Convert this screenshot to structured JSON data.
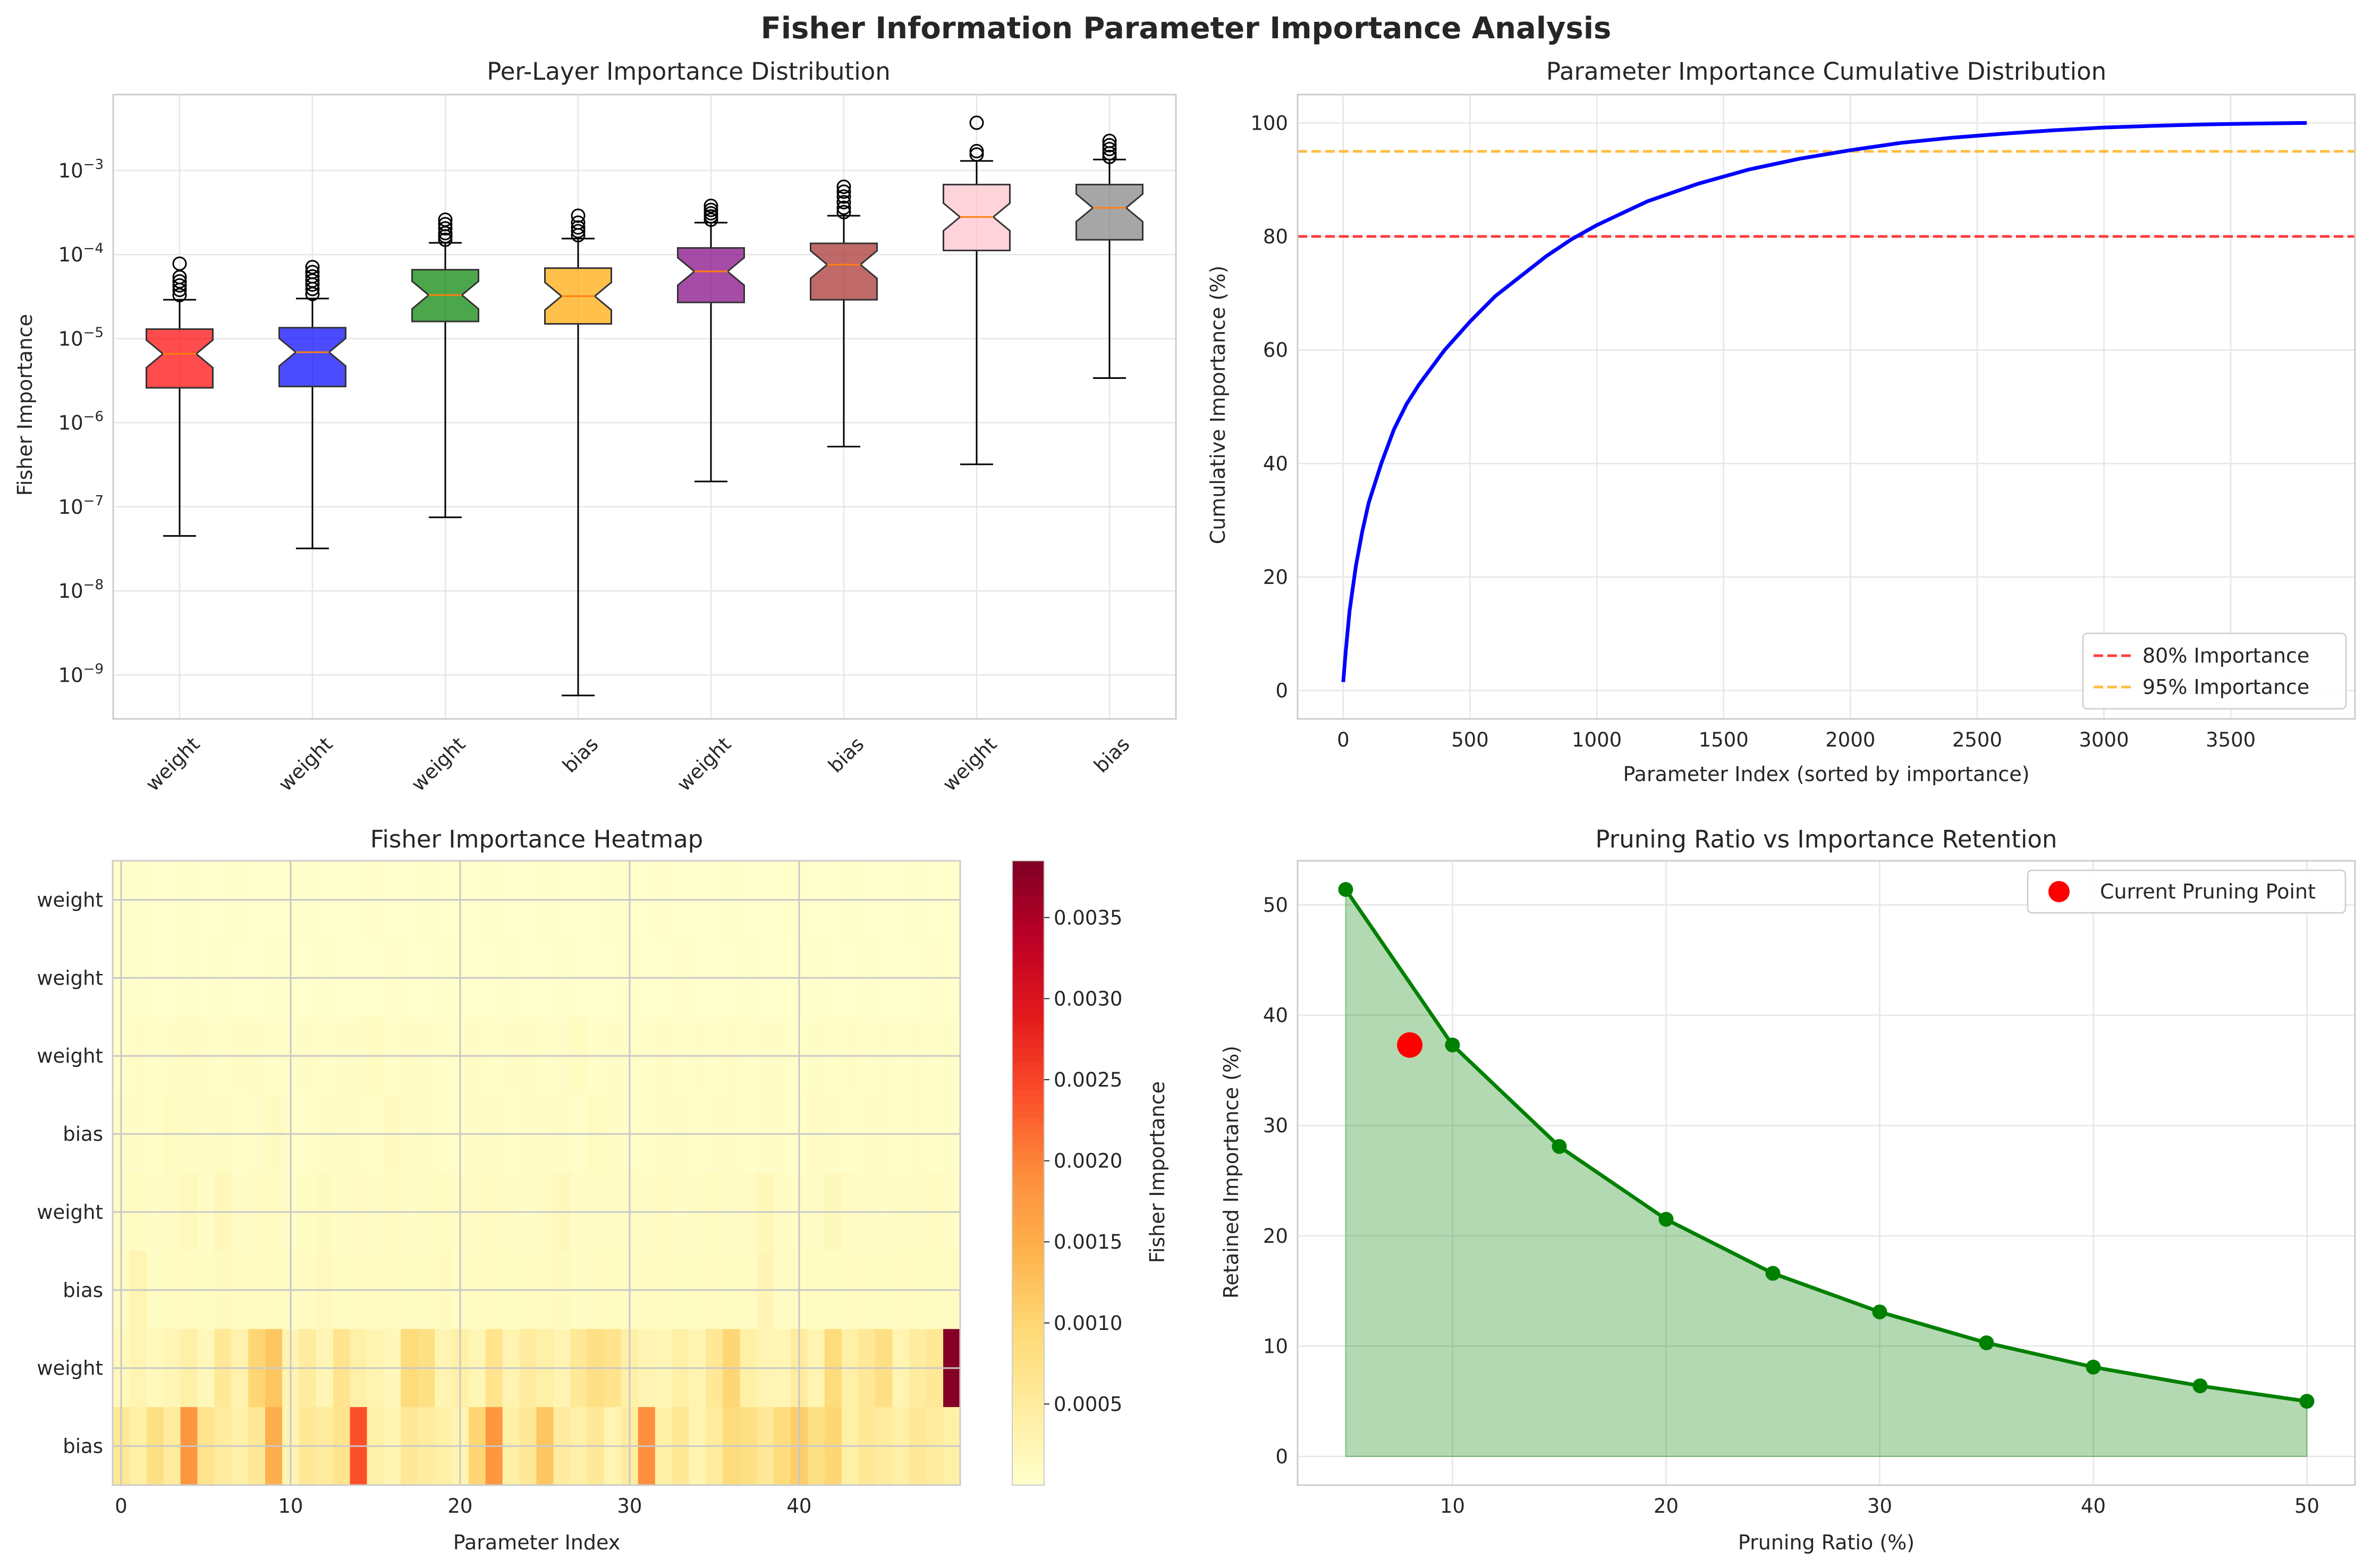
{
  "figure": {
    "suptitle": "Fisher Information Parameter Importance Analysis"
  },
  "chart_data": [
    {
      "type": "box",
      "title": "Per-Layer Importance Distribution",
      "xlabel": "",
      "ylabel": "Fisher Importance",
      "yscale": "log",
      "ylim": [
        3e-10,
        0.008
      ],
      "categories": [
        "weight",
        "weight",
        "weight",
        "bias",
        "weight",
        "bias",
        "weight",
        "bias"
      ],
      "colors": [
        "#ff0000",
        "#0000ff",
        "#008000",
        "#ffa500",
        "#800080",
        "#a52a2a",
        "#ffc0cb",
        "#808080"
      ],
      "boxes": [
        {
          "whislo": 4.5e-08,
          "q1": 2.6e-06,
          "med": 6.6e-06,
          "q3": 1.3e-05,
          "whishi": 2.9e-05,
          "fliers": [
            3.3e-05,
            3.8e-05,
            4.3e-05,
            4.8e-05,
            5.4e-05,
            7.8e-05
          ]
        },
        {
          "whislo": 3.2e-08,
          "q1": 2.7e-06,
          "med": 6.9e-06,
          "q3": 1.35e-05,
          "whishi": 3e-05,
          "fliers": [
            3.4e-05,
            3.9e-05,
            4.4e-05,
            4.9e-05,
            5.5e-05,
            6.2e-05,
            7.1e-05
          ]
        },
        {
          "whislo": 7.5e-08,
          "q1": 1.6e-05,
          "med": 3.3e-05,
          "q3": 6.6e-05,
          "whishi": 0.000138,
          "fliers": [
            0.00015,
            0.000165,
            0.00018,
            0.000205,
            0.00023,
            0.00026
          ]
        },
        {
          "whislo": 5.7e-10,
          "q1": 1.5e-05,
          "med": 3.2e-05,
          "q3": 6.9e-05,
          "whishi": 0.000155,
          "fliers": [
            0.00017,
            0.00019,
            0.00021,
            0.00024,
            0.00029
          ]
        },
        {
          "whislo": 2e-07,
          "q1": 2.7e-05,
          "med": 6.3e-05,
          "q3": 0.00012,
          "whishi": 0.00024,
          "fliers": [
            0.00026,
            0.000285,
            0.00031,
            0.00034,
            0.00038
          ]
        },
        {
          "whislo": 5.2e-07,
          "q1": 2.9e-05,
          "med": 7.6e-05,
          "q3": 0.000136,
          "whishi": 0.00029,
          "fliers": [
            0.00032,
            0.00036,
            0.00042,
            0.00049,
            0.00056,
            0.00064
          ]
        },
        {
          "whislo": 3.2e-07,
          "q1": 0.000112,
          "med": 0.00028,
          "q3": 0.00068,
          "whishi": 0.0013,
          "fliers": [
            0.00155,
            0.0017,
            0.0037
          ]
        },
        {
          "whislo": 3.4e-06,
          "q1": 0.00015,
          "med": 0.00036,
          "q3": 0.00068,
          "whishi": 0.00135,
          "fliers": [
            0.00145,
            0.0016,
            0.0018,
            0.002,
            0.00225
          ]
        }
      ],
      "yticks": [
        {
          "base": "10",
          "exp": "−3",
          "value": 0.001
        },
        {
          "base": "10",
          "exp": "−4",
          "value": 0.0001
        },
        {
          "base": "10",
          "exp": "−5",
          "value": 1e-05
        },
        {
          "base": "10",
          "exp": "−6",
          "value": 1e-06
        },
        {
          "base": "10",
          "exp": "−7",
          "value": 1e-07
        },
        {
          "base": "10",
          "exp": "−8",
          "value": 1e-08
        },
        {
          "base": "10",
          "exp": "−9",
          "value": 1e-09
        }
      ],
      "grid": true
    },
    {
      "type": "line",
      "title": "Parameter Importance Cumulative Distribution",
      "xlabel": "Parameter Index (sorted by importance)",
      "ylabel": "Cumulative Importance (%)",
      "xlim": [
        -180,
        3990
      ],
      "ylim": [
        -5,
        105
      ],
      "xticks": [
        0,
        500,
        1000,
        1500,
        2000,
        2500,
        3000,
        3500
      ],
      "yticks": [
        0,
        20,
        40,
        60,
        80,
        100
      ],
      "series": [
        {
          "color": "#0000ff",
          "x": [
            0,
            10,
            25,
            50,
            75,
            100,
            150,
            200,
            250,
            300,
            400,
            500,
            600,
            700,
            800,
            900,
            1000,
            1200,
            1400,
            1600,
            1800,
            2000,
            2200,
            2400,
            2600,
            2800,
            3000,
            3200,
            3400,
            3600,
            3800
          ],
          "y": [
            1.5,
            7,
            14,
            22,
            28,
            33,
            40,
            46,
            50.5,
            54,
            60,
            65,
            69.5,
            73,
            76.5,
            79.5,
            82,
            86.2,
            89.3,
            91.8,
            93.7,
            95.2,
            96.5,
            97.4,
            98.1,
            98.7,
            99.2,
            99.5,
            99.75,
            99.9,
            100
          ]
        }
      ],
      "hlines": [
        {
          "y": 80,
          "color": "#ff0000",
          "label": "80% Importance"
        },
        {
          "y": 95,
          "color": "#ffa500",
          "label": "95% Importance"
        }
      ],
      "legend": "bottom-right",
      "grid": true
    },
    {
      "type": "heatmap",
      "title": "Fisher Importance Heatmap",
      "xlabel": "Parameter Index",
      "ylabel": "",
      "rows": [
        "weight",
        "weight",
        "weight",
        "bias",
        "weight",
        "bias",
        "weight",
        "bias"
      ],
      "columns": 50,
      "xticks": [
        0,
        10,
        20,
        30,
        40
      ],
      "colormap": "YlOrRd",
      "vmin": 0,
      "vmax": 0.00385,
      "colorbar_label": "Fisher Importance",
      "colorbar_ticks": [
        "0.0005",
        "0.0010",
        "0.0015",
        "0.0020",
        "0.0025",
        "0.0030",
        "0.0035"
      ],
      "colorbar_tick_values": [
        0.0005,
        0.001,
        0.0015,
        0.002,
        0.0025,
        0.003,
        0.0035
      ],
      "values": [
        [
          1e-05,
          2e-05,
          1e-05,
          1e-05,
          2e-05,
          1e-05,
          1e-05,
          2e-05,
          1e-05,
          1e-05,
          1e-05,
          2e-05,
          1e-05,
          1e-05,
          1e-05,
          2e-05,
          1e-05,
          1e-05,
          2e-05,
          1e-05,
          1e-05,
          1e-05,
          2e-05,
          1e-05,
          1e-05,
          2e-05,
          1e-05,
          1e-05,
          1e-05,
          2e-05,
          1e-05,
          1e-05,
          2e-05,
          1e-05,
          1e-05,
          1e-05,
          2e-05,
          1e-05,
          1e-05,
          1e-05,
          2e-05,
          1e-05,
          1e-05,
          2e-05,
          1e-05,
          1e-05,
          1e-05,
          2e-05,
          1e-05,
          1e-05
        ],
        [
          1e-05,
          2e-05,
          1e-05,
          1e-05,
          2e-05,
          1e-05,
          2e-05,
          1e-05,
          1e-05,
          2e-05,
          1e-05,
          1e-05,
          2e-05,
          1e-05,
          1e-05,
          1e-05,
          2e-05,
          1e-05,
          1e-05,
          2e-05,
          1e-05,
          1e-05,
          1e-05,
          2e-05,
          1e-05,
          1e-05,
          2e-05,
          1e-05,
          1e-05,
          1e-05,
          2e-05,
          1e-05,
          1e-05,
          2e-05,
          1e-05,
          1e-05,
          1e-05,
          2e-05,
          1e-05,
          1e-05,
          1e-05,
          2e-05,
          1e-05,
          1e-05,
          2e-05,
          1e-05,
          1e-05,
          1e-05,
          2e-05,
          1e-05
        ],
        [
          4e-05,
          8e-05,
          3e-05,
          6e-05,
          0.0001,
          5e-05,
          4e-05,
          9e-05,
          6e-05,
          4e-05,
          5e-05,
          8e-05,
          4e-05,
          6e-05,
          5e-05,
          0.00012,
          4e-05,
          7e-05,
          5e-05,
          4e-05,
          6e-05,
          8e-05,
          4e-05,
          5e-05,
          9e-05,
          4e-05,
          6e-05,
          0.00012,
          4e-05,
          5e-05,
          6e-05,
          4e-05,
          7e-05,
          4e-05,
          5e-05,
          4e-05,
          8e-05,
          4e-05,
          6e-05,
          5e-05,
          4e-05,
          6e-05,
          4e-05,
          8e-05,
          4e-05,
          5e-05,
          4e-05,
          6e-05,
          4e-05,
          5e-05
        ],
        [
          5e-05,
          6e-05,
          4e-05,
          0.00012,
          8e-05,
          5e-05,
          0.0001,
          4e-05,
          6e-05,
          0.00014,
          5e-05,
          4e-05,
          7e-05,
          5e-05,
          6e-05,
          4e-05,
          0.00013,
          5e-05,
          8e-05,
          4e-05,
          6e-05,
          5e-05,
          0.0001,
          4e-05,
          6e-05,
          5e-05,
          7e-05,
          4e-05,
          0.00012,
          5e-05,
          6e-05,
          4e-05,
          5e-05,
          8e-05,
          4e-05,
          6e-05,
          5e-05,
          4e-05,
          6e-05,
          5e-05,
          4e-05,
          0.0001,
          5e-05,
          4e-05,
          6e-05,
          5e-05,
          4e-05,
          5e-05,
          4e-05,
          5e-05
        ],
        [
          8e-05,
          0.00012,
          6e-05,
          0.0001,
          0.00015,
          7e-05,
          0.0002,
          8e-05,
          0.0001,
          0.00012,
          6e-05,
          9e-05,
          0.00014,
          7e-05,
          0.0001,
          8e-05,
          0.00012,
          6e-05,
          9e-05,
          0.00011,
          7e-05,
          0.0001,
          0.00012,
          8e-05,
          6e-05,
          0.0001,
          0.00018,
          8e-05,
          9e-05,
          7e-05,
          0.00011,
          8e-05,
          0.0001,
          6e-05,
          9e-05,
          0.00012,
          8e-05,
          0.0001,
          0.0002,
          7e-05,
          9e-05,
          8e-05,
          0.00018,
          0.0001,
          8e-05,
          6e-05,
          9e-05,
          8e-05,
          0.0001,
          8e-05
        ],
        [
          0.0001,
          0.0003,
          8e-05,
          0.00012,
          0.0001,
          9e-05,
          0.00014,
          0.0001,
          0.00011,
          0.00012,
          9e-05,
          0.0001,
          0.00015,
          9e-05,
          0.00011,
          0.0001,
          0.00012,
          9e-05,
          0.0001,
          0.00013,
          9e-05,
          0.0001,
          0.00012,
          9e-05,
          0.00011,
          0.0001,
          0.00013,
          9e-05,
          0.0001,
          0.00012,
          9e-05,
          0.0001,
          0.00011,
          9e-05,
          0.0001,
          0.00012,
          9e-05,
          0.00011,
          0.00025,
          9e-05,
          0.0001,
          0.00012,
          9e-05,
          0.0001,
          0.00011,
          9e-05,
          0.0001,
          0.00012,
          9e-05,
          0.0001
        ],
        [
          0.0002,
          0.0003,
          0.00015,
          0.00025,
          0.0004,
          0.0002,
          0.0006,
          0.00035,
          0.001,
          0.0012,
          0.0003,
          0.0005,
          0.00025,
          0.0007,
          0.0004,
          0.0003,
          0.0002,
          0.0009,
          0.0008,
          0.0003,
          0.0004,
          0.00025,
          0.0007,
          0.0003,
          0.0005,
          0.0004,
          0.0003,
          0.0006,
          0.0008,
          0.0007,
          0.0004,
          0.0003,
          0.00025,
          0.0004,
          0.0003,
          0.0006,
          0.001,
          0.0004,
          0.0003,
          0.00025,
          0.0005,
          0.0003,
          0.0009,
          0.0004,
          0.0006,
          0.0008,
          0.0003,
          0.0005,
          0.0006,
          0.0038
        ],
        [
          0.0006,
          0.0004,
          0.0008,
          0.0005,
          0.0018,
          0.0007,
          0.0005,
          0.0004,
          0.0006,
          0.0015,
          0.0003,
          0.0006,
          0.0005,
          0.0007,
          0.0024,
          0.0004,
          0.0003,
          0.0006,
          0.0005,
          0.0004,
          0.0003,
          0.001,
          0.0018,
          0.0004,
          0.0006,
          0.0012,
          0.0005,
          0.0004,
          0.0006,
          0.0003,
          0.0005,
          0.0019,
          0.0004,
          0.0006,
          0.0003,
          0.0005,
          0.0009,
          0.0008,
          0.0006,
          0.0009,
          0.0011,
          0.0008,
          0.001,
          0.0004,
          0.0006,
          0.0005,
          0.0004,
          0.0006,
          0.0005,
          0.0004
        ]
      ]
    },
    {
      "type": "line",
      "title": "Pruning Ratio vs Importance Retention",
      "xlabel": "Pruning Ratio (%)",
      "ylabel": "Retained Importance (%)",
      "xlim": [
        2.75,
        52.25
      ],
      "ylim": [
        -2.6,
        54
      ],
      "xticks": [
        10,
        20,
        30,
        40,
        50
      ],
      "yticks": [
        0,
        10,
        20,
        30,
        40,
        50
      ],
      "series": [
        {
          "color": "#008000",
          "x": [
            5,
            10,
            15,
            20,
            25,
            30,
            35,
            40,
            45,
            50
          ],
          "y": [
            51.4,
            37.3,
            28.1,
            21.5,
            16.6,
            13.1,
            10.3,
            8.1,
            6.4,
            5.0
          ],
          "fill": true
        }
      ],
      "highlight": {
        "label": "Current Pruning Point",
        "x": 8,
        "y": 37.3,
        "color": "#ff0000"
      },
      "legend": "top-right",
      "grid": true
    }
  ]
}
